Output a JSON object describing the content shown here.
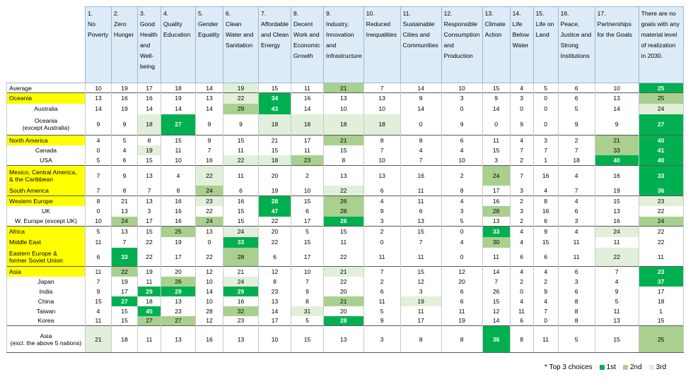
{
  "headers": [
    "1.\nNo Poverty",
    "2.\nZero Hunger",
    "3.\nGood Health and Well-being",
    "4.\nQuality Education",
    "5.\nGender Equality",
    "6.\nClean Water and Sanitation",
    "7.\nAffordable and Clean Energy",
    "8.\nDecent Work and Economic Growth",
    "9.\nIndustry, Innovation and Infrastructure",
    "10.\nReduced Inequalities",
    "11.\nSustainable Cities and Communities",
    "12.\nResponsible Consumption and Production",
    "13.\nClimate Action",
    "14.\nLife Below Water",
    "15.\nLife on Land",
    "16.\nPeace, Justice and Strong Institutions",
    "17.\nPartnerships for the Goals",
    "There are no goals with any material level of realization in 2030."
  ],
  "rows": [
    {
      "label": "Average",
      "values": [
        10,
        19,
        17,
        18,
        14,
        19,
        15,
        11,
        21,
        7,
        14,
        10,
        15,
        4,
        5,
        6,
        10,
        25
      ],
      "ranks": [
        0,
        0,
        0,
        0,
        0,
        3,
        0,
        0,
        2,
        0,
        0,
        0,
        0,
        0,
        0,
        0,
        0,
        1
      ]
    },
    {
      "label": "Oceania",
      "values": [
        13,
        16,
        16,
        19,
        13,
        22,
        34,
        16,
        13,
        13,
        9,
        3,
        9,
        3,
        0,
        6,
        13,
        25
      ],
      "ranks": [
        0,
        0,
        0,
        0,
        0,
        3,
        1,
        0,
        0,
        0,
        0,
        0,
        0,
        0,
        0,
        0,
        0,
        2
      ]
    },
    {
      "label": "Australia",
      "values": [
        14,
        19,
        14,
        14,
        14,
        29,
        43,
        14,
        10,
        10,
        14,
        0,
        14,
        0,
        0,
        5,
        14,
        24
      ],
      "ranks": [
        0,
        0,
        0,
        0,
        0,
        2,
        1,
        0,
        0,
        0,
        0,
        0,
        0,
        0,
        0,
        0,
        0,
        3
      ]
    },
    {
      "label": "Oceania\n(except Australia)",
      "values": [
        9,
        9,
        18,
        27,
        9,
        9,
        18,
        18,
        18,
        18,
        0,
        9,
        0,
        9,
        0,
        9,
        9,
        27
      ],
      "ranks": [
        0,
        0,
        3,
        1,
        0,
        0,
        3,
        3,
        3,
        3,
        0,
        0,
        0,
        0,
        0,
        0,
        0,
        1
      ]
    },
    {
      "label": "North America",
      "values": [
        4,
        5,
        8,
        15,
        9,
        15,
        21,
        17,
        21,
        8,
        8,
        6,
        11,
        4,
        3,
        2,
        21,
        40
      ],
      "ranks": [
        0,
        0,
        0,
        0,
        0,
        0,
        0,
        0,
        2,
        0,
        0,
        0,
        0,
        0,
        0,
        0,
        2,
        1
      ]
    },
    {
      "label": "Canada",
      "values": [
        0,
        4,
        19,
        11,
        7,
        11,
        15,
        11,
        15,
        7,
        4,
        4,
        15,
        7,
        7,
        7,
        33,
        41
      ],
      "ranks": [
        0,
        0,
        3,
        0,
        0,
        0,
        0,
        0,
        0,
        0,
        0,
        0,
        0,
        0,
        0,
        0,
        2,
        1
      ]
    },
    {
      "label": "USA",
      "values": [
        5,
        6,
        15,
        10,
        16,
        22,
        18,
        23,
        8,
        10,
        7,
        10,
        3,
        2,
        1,
        18,
        40,
        40
      ],
      "ranks": [
        0,
        0,
        0,
        0,
        0,
        3,
        3,
        2,
        0,
        0,
        0,
        0,
        0,
        0,
        0,
        0,
        1,
        1
      ]
    },
    {
      "label": "Mexico, Central America,\n& the Caribbean",
      "values": [
        7,
        9,
        13,
        4,
        22,
        11,
        20,
        2,
        13,
        13,
        16,
        2,
        24,
        7,
        16,
        4,
        16,
        33
      ],
      "ranks": [
        0,
        0,
        0,
        0,
        3,
        0,
        0,
        0,
        0,
        0,
        0,
        0,
        2,
        0,
        0,
        0,
        0,
        1
      ]
    },
    {
      "label": "South America",
      "values": [
        7,
        8,
        7,
        8,
        24,
        6,
        19,
        10,
        22,
        6,
        11,
        8,
        17,
        3,
        4,
        7,
        19,
        36
      ],
      "ranks": [
        0,
        0,
        0,
        0,
        2,
        0,
        0,
        0,
        3,
        0,
        0,
        0,
        0,
        0,
        0,
        0,
        0,
        1
      ]
    },
    {
      "label": "Western Europe",
      "values": [
        8,
        21,
        13,
        16,
        23,
        16,
        28,
        15,
        26,
        4,
        11,
        4,
        16,
        2,
        8,
        4,
        15,
        23
      ],
      "ranks": [
        0,
        0,
        0,
        0,
        3,
        0,
        1,
        0,
        2,
        0,
        0,
        0,
        0,
        0,
        0,
        0,
        0,
        3
      ]
    },
    {
      "label": "UK",
      "values": [
        0,
        13,
        3,
        16,
        22,
        15,
        47,
        6,
        28,
        9,
        6,
        3,
        28,
        3,
        16,
        6,
        13,
        22
      ],
      "ranks": [
        0,
        0,
        0,
        0,
        0,
        0,
        1,
        0,
        2,
        0,
        0,
        0,
        2,
        0,
        0,
        0,
        0,
        0
      ]
    },
    {
      "label": "W. Europe (except UK)",
      "values": [
        10,
        24,
        17,
        16,
        24,
        15,
        22,
        17,
        26,
        3,
        13,
        5,
        13,
        2,
        6,
        3,
        16,
        24
      ],
      "ranks": [
        0,
        2,
        0,
        0,
        2,
        0,
        0,
        0,
        1,
        0,
        0,
        0,
        0,
        0,
        0,
        0,
        0,
        2
      ]
    },
    {
      "label": "Africa",
      "values": [
        5,
        13,
        15,
        25,
        13,
        24,
        20,
        5,
        15,
        2,
        15,
        0,
        33,
        4,
        9,
        4,
        24,
        22
      ],
      "ranks": [
        0,
        0,
        0,
        2,
        0,
        3,
        0,
        0,
        0,
        0,
        0,
        0,
        1,
        0,
        0,
        0,
        3,
        0
      ]
    },
    {
      "label": "Middle East",
      "values": [
        11,
        7,
        22,
        19,
        0,
        33,
        22,
        15,
        11,
        0,
        7,
        4,
        30,
        4,
        15,
        11,
        11,
        22
      ],
      "ranks": [
        0,
        0,
        0,
        0,
        0,
        1,
        0,
        0,
        0,
        0,
        0,
        0,
        2,
        0,
        0,
        0,
        0,
        0
      ]
    },
    {
      "label": "Eastern Europe &\nformer Soviet Union",
      "values": [
        6,
        33,
        22,
        17,
        22,
        28,
        6,
        17,
        22,
        11,
        11,
        0,
        11,
        6,
        6,
        11,
        22,
        11
      ],
      "ranks": [
        0,
        1,
        0,
        0,
        0,
        2,
        0,
        0,
        0,
        0,
        0,
        0,
        0,
        0,
        0,
        0,
        3,
        0
      ]
    },
    {
      "label": "Asia",
      "values": [
        11,
        22,
        19,
        20,
        12,
        21,
        12,
        10,
        21,
        7,
        15,
        12,
        14,
        4,
        4,
        6,
        7,
        23
      ],
      "ranks": [
        0,
        2,
        0,
        0,
        0,
        0,
        0,
        0,
        3,
        0,
        0,
        0,
        0,
        0,
        0,
        0,
        0,
        1
      ]
    },
    {
      "label": "Japan",
      "values": [
        7,
        19,
        11,
        26,
        10,
        24,
        8,
        7,
        22,
        2,
        12,
        20,
        7,
        2,
        2,
        3,
        4,
        37
      ],
      "ranks": [
        0,
        0,
        0,
        2,
        0,
        3,
        0,
        0,
        0,
        0,
        0,
        0,
        0,
        0,
        0,
        0,
        0,
        1
      ]
    },
    {
      "label": "India",
      "values": [
        9,
        17,
        29,
        29,
        14,
        29,
        23,
        9,
        20,
        6,
        3,
        6,
        26,
        0,
        9,
        6,
        9,
        17
      ],
      "ranks": [
        0,
        0,
        1,
        1,
        0,
        1,
        0,
        0,
        0,
        0,
        0,
        0,
        0,
        0,
        0,
        0,
        0,
        0
      ]
    },
    {
      "label": "China",
      "values": [
        15,
        27,
        18,
        13,
        10,
        16,
        13,
        8,
        21,
        11,
        19,
        6,
        15,
        4,
        4,
        8,
        5,
        18
      ],
      "ranks": [
        0,
        1,
        0,
        0,
        0,
        0,
        0,
        0,
        2,
        0,
        3,
        0,
        0,
        0,
        0,
        0,
        0,
        0
      ]
    },
    {
      "label": "Taiwan",
      "values": [
        4,
        15,
        45,
        23,
        28,
        32,
        14,
        31,
        20,
        5,
        11,
        11,
        12,
        11,
        7,
        8,
        11,
        1
      ],
      "ranks": [
        0,
        0,
        1,
        0,
        0,
        2,
        0,
        3,
        0,
        0,
        0,
        0,
        0,
        0,
        0,
        0,
        0,
        0
      ]
    },
    {
      "label": "Korea",
      "values": [
        11,
        15,
        27,
        27,
        12,
        23,
        17,
        5,
        28,
        9,
        17,
        19,
        14,
        6,
        0,
        8,
        13,
        15
      ],
      "ranks": [
        0,
        0,
        2,
        2,
        0,
        0,
        0,
        0,
        1,
        0,
        0,
        0,
        0,
        0,
        0,
        0,
        0,
        0
      ]
    },
    {
      "label": "Asia\n(excl. the above 5 nations)",
      "values": [
        21,
        18,
        11,
        13,
        16,
        13,
        10,
        15,
        13,
        3,
        8,
        8,
        36,
        8,
        11,
        5,
        15,
        25
      ],
      "ranks": [
        3,
        0,
        0,
        0,
        0,
        0,
        0,
        0,
        0,
        0,
        0,
        0,
        1,
        0,
        0,
        0,
        0,
        2
      ]
    }
  ],
  "legend": {
    "title": "* Top 3 choices",
    "items": [
      {
        "label": "1st",
        "color": "#00b050"
      },
      {
        "label": "2nd",
        "color": "#a9d08e"
      },
      {
        "label": "3rd",
        "color": "#e2efda"
      }
    ]
  }
}
